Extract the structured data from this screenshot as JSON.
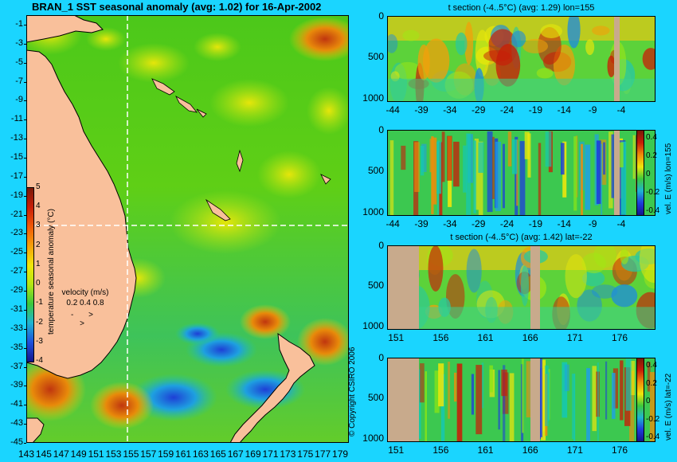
{
  "main_map": {
    "title": "BRAN_1 SST seasonal anomaly (avg: 1.02) for 16-Apr-2002",
    "y_ticks": [
      "-1",
      "-3",
      "-5",
      "-7",
      "-9",
      "-11",
      "-13",
      "-15",
      "-17",
      "-19",
      "-21",
      "-23",
      "-25",
      "-27",
      "-29",
      "-31",
      "-33",
      "-35",
      "-37",
      "-39",
      "-41",
      "-43",
      "-45"
    ],
    "x_ticks": [
      "143",
      "145",
      "147",
      "149",
      "151",
      "153",
      "155",
      "157",
      "159",
      "161",
      "163",
      "165",
      "167",
      "169",
      "171",
      "173",
      "175",
      "177",
      "179"
    ],
    "colorbar": {
      "label": "temperature seasonal anomaly (°C)",
      "ticks": [
        "5",
        "4",
        "3",
        "2",
        "1",
        "0",
        "-1",
        "-2",
        "-3",
        "-4"
      ]
    },
    "velocity_legend": {
      "title": "velocity (m/s)",
      "scale": "0.2 0.4 0.8"
    }
  },
  "panels": [
    {
      "title": "t section (-4..5°C) (avg: 1.29) lon=155",
      "y_ticks": [
        "0",
        "500",
        "1000"
      ],
      "x_ticks": [
        "-44",
        "-39",
        "-34",
        "-29",
        "-24",
        "-19",
        "-14",
        "-9",
        "-4"
      ]
    },
    {
      "title": "",
      "y_ticks": [
        "0",
        "500",
        "1000"
      ],
      "x_ticks": [
        "-44",
        "-39",
        "-34",
        "-29",
        "-24",
        "-19",
        "-14",
        "-9",
        "-4"
      ],
      "side_label": "vel. E (m/s) lon=155",
      "cb_ticks": [
        "0.4",
        "0.2",
        "0",
        "-0.2",
        "-0.4"
      ]
    },
    {
      "title": "t section (-4..5°C) (avg: 1.42) lat=-22",
      "y_ticks": [
        "0",
        "500",
        "1000"
      ],
      "x_ticks": [
        "151",
        "156",
        "161",
        "166",
        "171",
        "176"
      ]
    },
    {
      "title": "",
      "y_ticks": [
        "0",
        "500",
        "1000"
      ],
      "x_ticks": [
        "151",
        "156",
        "161",
        "166",
        "171",
        "176"
      ],
      "side_label": "vel. E (m/s) lat=-22",
      "cb_ticks": [
        "0.4",
        "0.2",
        "0",
        "-0.2",
        "-0.4"
      ]
    }
  ],
  "copyright": "© Copyright CSIRO 2006",
  "chart_data": [
    {
      "type": "heatmap",
      "title": "BRAN_1 SST seasonal anomaly (avg: 1.02) for 16-Apr-2002",
      "x": [
        143,
        145,
        147,
        149,
        151,
        153,
        155,
        157,
        159,
        161,
        163,
        165,
        167,
        169,
        171,
        173,
        175,
        177,
        179
      ],
      "y": [
        -1,
        -3,
        -5,
        -7,
        -9,
        -11,
        -13,
        -15,
        -17,
        -19,
        -21,
        -23,
        -25,
        -27,
        -29,
        -31,
        -33,
        -35,
        -37,
        -39,
        -41,
        -43,
        -45
      ],
      "xlim": [
        143,
        180
      ],
      "ylim": [
        -45,
        0
      ],
      "colorbar_label": "temperature seasonal anomaly (°C)",
      "colorbar_range": [
        -4,
        5
      ],
      "section_lines": {
        "lon": 155,
        "lat": -22
      },
      "colors": {
        "land": "#f9c09b",
        "background": "#1ad5ff"
      }
    },
    {
      "type": "heatmap",
      "title": "t section (-4..5°C) (avg: 1.29) lon=155",
      "x": [
        -44,
        -39,
        -34,
        -29,
        -24,
        -19,
        -14,
        -9,
        -4
      ],
      "y": [
        0,
        500,
        1000
      ],
      "ylim": [
        1050,
        0
      ]
    },
    {
      "type": "heatmap",
      "title": "vel. E (m/s) lon=155",
      "x": [
        -44,
        -39,
        -34,
        -29,
        -24,
        -19,
        -14,
        -9,
        -4
      ],
      "y": [
        0,
        500,
        1000
      ],
      "colorbar_range": [
        -0.4,
        0.4
      ]
    },
    {
      "type": "heatmap",
      "title": "t section (-4..5°C) (avg: 1.42) lat=-22",
      "x": [
        151,
        156,
        161,
        166,
        171,
        176
      ],
      "y": [
        0,
        500,
        1000
      ]
    },
    {
      "type": "heatmap",
      "title": "vel. E (m/s) lat=-22",
      "x": [
        151,
        156,
        161,
        166,
        171,
        176
      ],
      "y": [
        0,
        500,
        1000
      ],
      "colorbar_range": [
        -0.4,
        0.4
      ]
    }
  ]
}
